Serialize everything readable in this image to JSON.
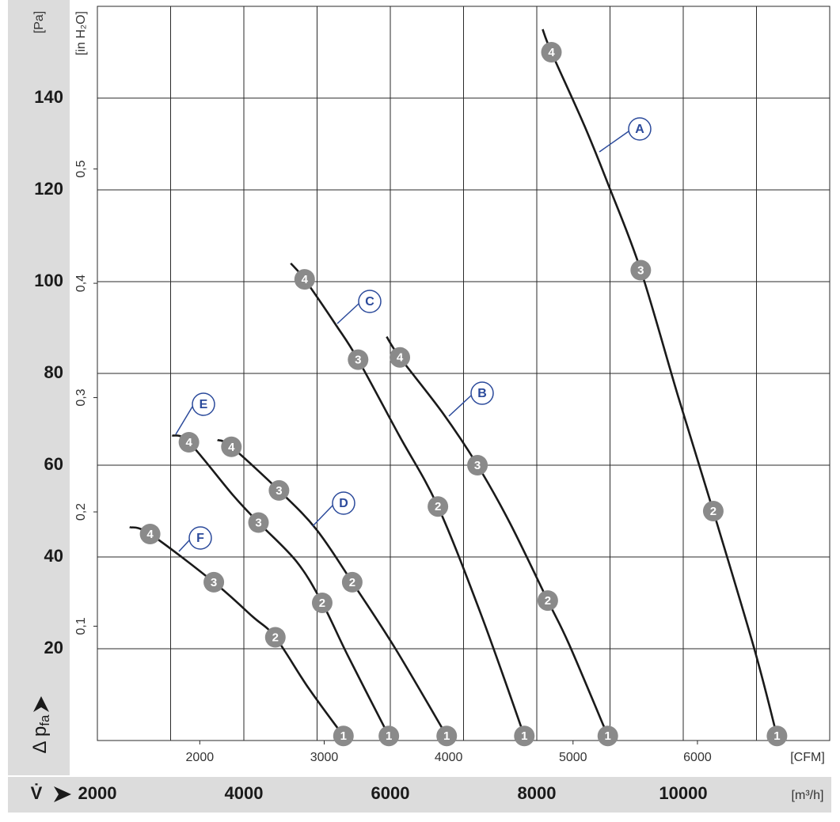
{
  "chart_data": {
    "type": "line",
    "ylabel_unit": "[Pa]",
    "y2label_unit": "[in H₂O]",
    "ylabel": "Δ p",
    "ylabel_sub": "fa",
    "xlabel": "V̇",
    "xlabel_unit": "[m³/h]",
    "x2label_unit": "[CFM]",
    "xlim": [
      2000,
      12000
    ],
    "xticks": [
      2000,
      4000,
      6000,
      8000,
      10000
    ],
    "xgrid": [
      3000,
      5000,
      7000,
      9000,
      11000
    ],
    "x2lim": [
      1177,
      7063
    ],
    "x2ticks": [
      2000,
      3000,
      4000,
      5000,
      6000
    ],
    "ylim": [
      0,
      160
    ],
    "yticks": [
      20,
      40,
      60,
      80,
      100,
      120,
      140
    ],
    "y2lim": [
      0,
      0.6423
    ],
    "y2ticks": [
      {
        "value": 0.1,
        "label": "0,1"
      },
      {
        "value": 0.2,
        "label": "0,2"
      },
      {
        "value": 0.3,
        "label": "0,3"
      },
      {
        "value": 0.4,
        "label": "0,4"
      },
      {
        "value": 0.5,
        "label": "0,5"
      }
    ],
    "grid": true,
    "series": [
      {
        "name": "A",
        "color": "#1a1a1a",
        "x": [
          8080,
          8200,
          8650,
          8980,
          9420,
          9930,
          10410,
          10970,
          11280
        ],
        "values": [
          155,
          150,
          134,
          121,
          102.5,
          75,
          50,
          20,
          1
        ],
        "points": [
          {
            "label": "4",
            "x": 8200,
            "y": 150
          },
          {
            "label": "3",
            "x": 9420,
            "y": 102.5
          },
          {
            "label": "2",
            "x": 10410,
            "y": 50
          },
          {
            "label": "1",
            "x": 11280,
            "y": 1
          }
        ]
      },
      {
        "name": "B",
        "color": "#1a1a1a",
        "x": [
          5950,
          6130,
          6710,
          7190,
          7630,
          8150,
          8440,
          8970
        ],
        "values": [
          88,
          83.5,
          71.5,
          60,
          47.5,
          30.5,
          21,
          1
        ],
        "points": [
          {
            "label": "4",
            "x": 6130,
            "y": 83.5
          },
          {
            "label": "3",
            "x": 7190,
            "y": 60
          },
          {
            "label": "2",
            "x": 8150,
            "y": 30.5
          },
          {
            "label": "1",
            "x": 8970,
            "y": 1
          }
        ]
      },
      {
        "name": "C",
        "color": "#1a1a1a",
        "x": [
          4640,
          4830,
          5260,
          5560,
          6120,
          6650,
          7250,
          7830
        ],
        "values": [
          104,
          100.5,
          90.5,
          83,
          66.5,
          51,
          27,
          1
        ],
        "points": [
          {
            "label": "4",
            "x": 4830,
            "y": 100.5
          },
          {
            "label": "3",
            "x": 5560,
            "y": 83
          },
          {
            "label": "2",
            "x": 6650,
            "y": 51
          },
          {
            "label": "1",
            "x": 7830,
            "y": 1
          }
        ]
      },
      {
        "name": "D",
        "color": "#1a1a1a",
        "x": [
          3640,
          3830,
          4480,
          4990,
          5480,
          6070,
          6770
        ],
        "values": [
          65.5,
          64,
          54.5,
          46,
          34.5,
          20,
          1
        ],
        "points": [
          {
            "label": "4",
            "x": 3830,
            "y": 64
          },
          {
            "label": "3",
            "x": 4480,
            "y": 54.5
          },
          {
            "label": "2",
            "x": 5480,
            "y": 34.5
          },
          {
            "label": "1",
            "x": 6770,
            "y": 1
          }
        ]
      },
      {
        "name": "E",
        "color": "#1a1a1a",
        "x": [
          3020,
          3250,
          3850,
          4200,
          4720,
          5070,
          5420,
          5980
        ],
        "values": [
          66.5,
          65,
          53.5,
          47.5,
          39,
          30,
          18.5,
          1
        ],
        "points": [
          {
            "label": "4",
            "x": 3250,
            "y": 65
          },
          {
            "label": "3",
            "x": 4200,
            "y": 47.5
          },
          {
            "label": "2",
            "x": 5070,
            "y": 30
          },
          {
            "label": "1",
            "x": 5980,
            "y": 1
          }
        ]
      },
      {
        "name": "F",
        "color": "#1a1a1a",
        "x": [
          2440,
          2720,
          3590,
          4120,
          4430,
          4880,
          5360
        ],
        "values": [
          46.5,
          45,
          34.5,
          27,
          22.5,
          11.5,
          1
        ],
        "points": [
          {
            "label": "4",
            "x": 2720,
            "y": 45
          },
          {
            "label": "3",
            "x": 3590,
            "y": 34.5
          },
          {
            "label": "2",
            "x": 4430,
            "y": 22.5
          },
          {
            "label": "1",
            "x": 5360,
            "y": 1
          }
        ]
      }
    ]
  }
}
